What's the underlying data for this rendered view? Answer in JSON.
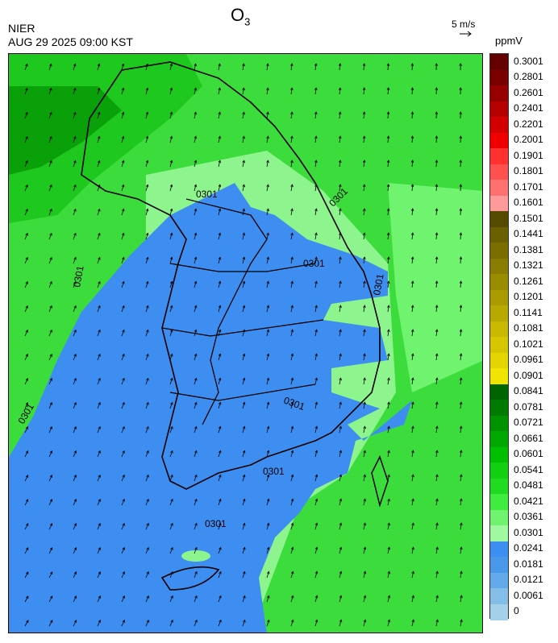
{
  "header": {
    "title_main": "O",
    "title_sub": "3",
    "source": "NIER",
    "datetime": "AUG 29 2025 09:00 KST",
    "reference_vector_label": "5 m/s",
    "unit": "ppmV"
  },
  "map": {
    "contour_labels": [
      "0301",
      "0301",
      "0301",
      "0301",
      "0301",
      "0301",
      "0301",
      "0301",
      "0301"
    ],
    "colors": {
      "low_blue": "#3d8ef0",
      "mid_light_green": "#8ef58e",
      "mid_green": "#3ddc3d",
      "high_green": "#1ec81e",
      "dark_green": "#0aa00a"
    }
  },
  "colorbar": {
    "labels": [
      "0.3001",
      "0.2801",
      "0.2601",
      "0.2401",
      "0.2201",
      "0.2001",
      "0.1901",
      "0.1801",
      "0.1701",
      "0.1601",
      "0.1501",
      "0.1441",
      "0.1381",
      "0.1321",
      "0.1261",
      "0.1201",
      "0.1141",
      "0.1081",
      "0.1021",
      "0.0961",
      "0.0901",
      "0.0841",
      "0.0781",
      "0.0721",
      "0.0661",
      "0.0601",
      "0.0541",
      "0.0481",
      "0.0421",
      "0.0361",
      "0.0301",
      "0.0241",
      "0.0181",
      "0.0121",
      "0.0061",
      "0"
    ],
    "colors": [
      "#640000",
      "#7a0000",
      "#960000",
      "#b40000",
      "#d20000",
      "#f00000",
      "#ff3030",
      "#ff5050",
      "#ff7070",
      "#ff9a9a",
      "#554a00",
      "#6b6000",
      "#7a6e00",
      "#8a7c00",
      "#9a8c00",
      "#aa9a00",
      "#b8a800",
      "#c8b800",
      "#d6c600",
      "#e4d400",
      "#f0e400",
      "#006400",
      "#007a00",
      "#009200",
      "#00a800",
      "#00be00",
      "#10d010",
      "#20dc20",
      "#40ec40",
      "#70f470",
      "#a0f8a0",
      "#3c8ef0",
      "#4a98ea",
      "#64aaea",
      "#84bde8",
      "#a4d0ea"
    ]
  }
}
